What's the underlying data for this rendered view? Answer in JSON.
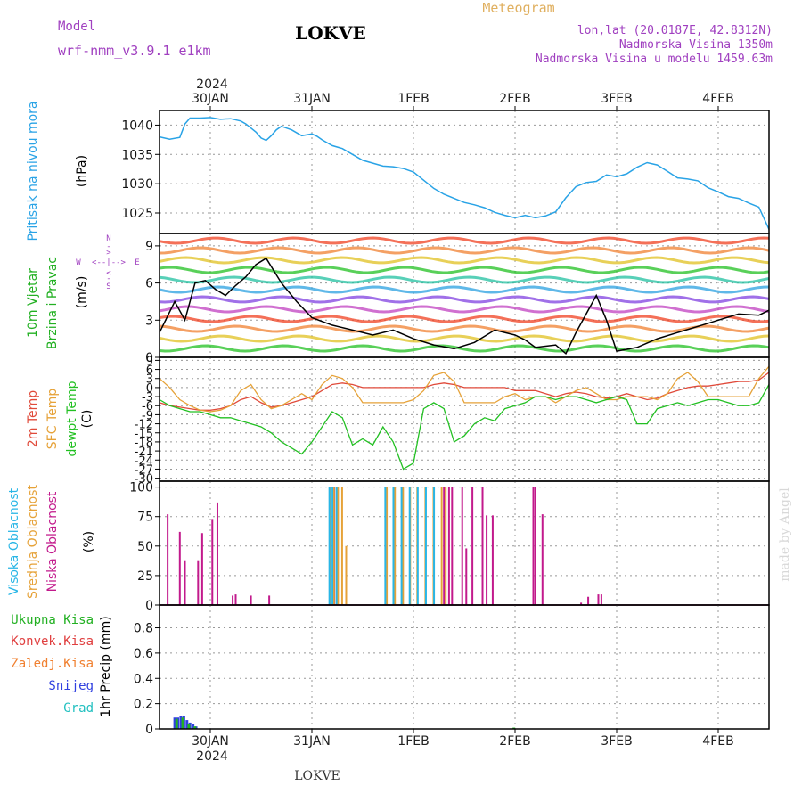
{
  "header": {
    "model_label": "Model",
    "model_name": "wrf-nmm_v3.9.1 e1km",
    "station": "LOKVE",
    "meteogram": "Meteogram",
    "lonlat": "lon,lat (20.0187E, 42.8312N)",
    "elevation": "Nadmorska Visina 1350m",
    "model_elevation": "Nadmorska Visina u modelu 1459.63m",
    "footer_station": "LOKVE",
    "watermark": "made by Angel"
  },
  "colors": {
    "pressure": "#29a3e6",
    "temp2m": "#e04a3a",
    "sfc_temp": "#e6a238",
    "dewpt": "#22c022",
    "cloud_high": "#29b6e6",
    "cloud_mid": "#e6a238",
    "cloud_low": "#c21a8c",
    "precip_total": "#22b022",
    "precip_conv": "#e04040",
    "precip_frozen": "#f08030",
    "precip_snow": "#3040e0",
    "precip_graupel": "#22c0c0",
    "title_purple": "#a040c0",
    "meteogram_orange": "#e0b060"
  },
  "chart_data": [
    {
      "type": "line",
      "panel": "pressure",
      "ylabel": [
        "Pritisak na nivou mora",
        "(hPa)"
      ],
      "yticks": [
        1025,
        1030,
        1035,
        1040
      ],
      "ylim": [
        1021.5,
        1042.5
      ],
      "xlim": [
        -0.5,
        5.5
      ],
      "x": [
        -0.5,
        -0.4,
        -0.3,
        -0.25,
        -0.2,
        -0.1,
        0.0,
        0.1,
        0.2,
        0.3,
        0.35,
        0.45,
        0.5,
        0.55,
        0.6,
        0.65,
        0.7,
        0.8,
        0.9,
        1.0,
        1.05,
        1.1,
        1.2,
        1.3,
        1.4,
        1.5,
        1.6,
        1.7,
        1.8,
        1.9,
        2.0,
        2.1,
        2.2,
        2.3,
        2.4,
        2.5,
        2.6,
        2.7,
        2.8,
        2.9,
        3.0,
        3.1,
        3.2,
        3.3,
        3.4,
        3.5,
        3.6,
        3.7,
        3.8,
        3.9,
        4.0,
        4.1,
        4.2,
        4.3,
        4.4,
        4.5,
        4.6,
        4.7,
        4.8,
        4.9,
        5.0,
        5.1,
        5.2,
        5.3,
        5.4,
        5.5
      ],
      "y": [
        1038,
        1037.6,
        1037.9,
        1040.2,
        1041.2,
        1041.2,
        1041.3,
        1041,
        1041.1,
        1040.7,
        1040.2,
        1038.8,
        1037.8,
        1037.4,
        1038.2,
        1039.2,
        1039.8,
        1039.2,
        1038.2,
        1038.5,
        1038.1,
        1037.5,
        1036.5,
        1036,
        1035,
        1034,
        1033.5,
        1033,
        1032.9,
        1032.6,
        1032,
        1030.6,
        1029.2,
        1028.2,
        1027.5,
        1026.8,
        1026.4,
        1025.9,
        1025.1,
        1024.6,
        1024.2,
        1024.6,
        1024.2,
        1024.5,
        1025.2,
        1027.6,
        1029.5,
        1030.2,
        1030.4,
        1031.5,
        1031.2,
        1031.7,
        1032.8,
        1033.6,
        1033.2,
        1032.1,
        1031,
        1030.8,
        1030.5,
        1029.3,
        1028.6,
        1027.8,
        1027.5,
        1026.7,
        1026,
        1022.2
      ]
    },
    {
      "type": "line",
      "panel": "wind",
      "ylabel": [
        "10m Vjetar",
        "Brzina i Pravac",
        "(m/s)"
      ],
      "compass": {
        "n": "N",
        "w": "W",
        "e": "E",
        "s": "S"
      },
      "yticks": [
        0,
        3,
        6,
        9
      ],
      "ylim": [
        0,
        10
      ],
      "xlim": [
        -0.5,
        5.5
      ],
      "x": [
        -0.5,
        -0.35,
        -0.25,
        -0.15,
        -0.05,
        0.05,
        0.15,
        0.25,
        0.35,
        0.45,
        0.55,
        0.7,
        0.85,
        1.0,
        1.2,
        1.4,
        1.6,
        1.8,
        2.0,
        2.2,
        2.4,
        2.6,
        2.8,
        3.0,
        3.1,
        3.2,
        3.3,
        3.4,
        3.5,
        3.6,
        3.7,
        3.8,
        3.9,
        4.0,
        4.2,
        4.4,
        4.6,
        4.8,
        5.0,
        5.2,
        5.4,
        5.5
      ],
      "y": [
        2,
        4.5,
        3,
        6,
        6.2,
        5.5,
        5,
        5.8,
        6.5,
        7.5,
        8,
        6,
        4.5,
        3.2,
        2.6,
        2.2,
        1.8,
        2.2,
        1.5,
        1,
        0.7,
        1.2,
        2.2,
        1.8,
        1.4,
        0.8,
        0.9,
        1,
        0.3,
        2,
        3.5,
        5,
        3,
        0.5,
        0.8,
        1.5,
        2,
        2.5,
        3,
        3.5,
        3.4,
        3.8
      ]
    },
    {
      "type": "line",
      "panel": "temperature",
      "ylabel": [
        "2m Temp",
        "SFC Temp",
        "dewpt Temp",
        "(C)"
      ],
      "yticks": [
        9,
        6,
        3,
        0,
        -3,
        -6,
        -9,
        -12,
        -15,
        -18,
        -21,
        -24,
        -27,
        -30
      ],
      "ylim": [
        -31,
        10
      ],
      "xlim": [
        -0.5,
        5.5
      ],
      "x": [
        -0.5,
        -0.4,
        -0.3,
        -0.2,
        -0.1,
        0.0,
        0.1,
        0.2,
        0.3,
        0.4,
        0.5,
        0.6,
        0.7,
        0.8,
        0.9,
        1.0,
        1.1,
        1.2,
        1.3,
        1.4,
        1.5,
        1.6,
        1.7,
        1.8,
        1.9,
        2.0,
        2.1,
        2.2,
        2.3,
        2.4,
        2.5,
        2.6,
        2.7,
        2.8,
        2.9,
        3.0,
        3.1,
        3.2,
        3.3,
        3.4,
        3.5,
        3.6,
        3.7,
        3.8,
        3.9,
        4.0,
        4.1,
        4.2,
        4.3,
        4.4,
        4.5,
        4.6,
        4.7,
        4.8,
        4.9,
        5.0,
        5.1,
        5.2,
        5.3,
        5.4,
        5.5
      ],
      "series": [
        {
          "name": "2m Temp",
          "color_key": "temp2m",
          "values": [
            -5,
            -6,
            -6.5,
            -7,
            -7.5,
            -7.5,
            -7,
            -6,
            -4,
            -3,
            -5,
            -6.5,
            -6,
            -5,
            -4,
            -3,
            -1,
            1,
            1.5,
            1,
            0,
            0,
            0,
            0,
            0,
            0,
            0,
            1,
            1.5,
            1,
            0,
            0,
            0,
            0,
            0,
            -1,
            -1,
            -1,
            -2,
            -3,
            -2,
            -1.5,
            -2,
            -3,
            -3.5,
            -3,
            -2,
            -3,
            -4,
            -3.5,
            -2,
            -1,
            0,
            0.5,
            0.5,
            1,
            1.5,
            2,
            2,
            2.5,
            5
          ]
        },
        {
          "name": "SFC Temp",
          "color_key": "sfc_temp",
          "values": [
            3,
            0,
            -4,
            -6,
            -7.5,
            -8,
            -7.5,
            -6,
            -1,
            1,
            -4,
            -7,
            -6,
            -4,
            -2,
            -4,
            1,
            4,
            3,
            0,
            -5,
            -5,
            -5,
            -5,
            -5,
            -4,
            -1,
            4,
            5,
            2,
            -5,
            -5,
            -5,
            -5,
            -3,
            -2,
            -4,
            -3,
            -3,
            -5,
            -3,
            -1,
            0,
            -2,
            -4,
            -4,
            -3,
            -3,
            -3,
            -4,
            -2,
            3,
            5,
            2,
            -3,
            -3,
            -3,
            -3,
            -3,
            3,
            7
          ]
        },
        {
          "name": "dewpt Temp",
          "color_key": "dewpt",
          "values": [
            -4,
            -6,
            -7,
            -8,
            -8,
            -9,
            -10,
            -10,
            -11,
            -12,
            -13,
            -15,
            -18,
            -20,
            -22,
            -18,
            -13,
            -8,
            -10,
            -19,
            -17,
            -19,
            -13,
            -18,
            -27,
            -25,
            -7,
            -5,
            -7,
            -18,
            -16,
            -12,
            -10,
            -11,
            -7,
            -6,
            -5,
            -3,
            -3,
            -4,
            -3,
            -3,
            -4,
            -5,
            -4,
            -3,
            -4,
            -12,
            -12,
            -7,
            -6,
            -5,
            -6,
            -5,
            -4,
            -4,
            -5,
            -6,
            -6,
            -5,
            1
          ]
        }
      ]
    },
    {
      "type": "bar",
      "panel": "clouds",
      "ylabel": [
        "Visoka Oblacnost",
        "Srednja Oblacnost",
        "Niska Oblacnost",
        "(%)"
      ],
      "yticks": [
        0,
        25,
        50,
        75,
        100
      ],
      "ylim": [
        0,
        105
      ],
      "xlim": [
        -0.5,
        5.5
      ],
      "low": {
        "x": [
          -0.42,
          -0.3,
          -0.25,
          -0.12,
          -0.08,
          0.02,
          0.07,
          0.22,
          0.25,
          0.4,
          0.58,
          1.18,
          1.22,
          2.3,
          2.35,
          2.38,
          2.48,
          2.52,
          2.58,
          2.68,
          2.72,
          2.78,
          3.18,
          3.2,
          3.27,
          3.65,
          3.72,
          3.82,
          3.85
        ],
        "y": [
          77,
          62,
          38,
          38,
          61,
          73,
          87,
          8,
          9,
          8,
          8,
          100,
          100,
          100,
          100,
          100,
          100,
          48,
          100,
          100,
          76,
          76,
          100,
          100,
          77,
          2,
          7,
          9,
          9
        ]
      },
      "mid": {
        "x": [
          1.16,
          1.2,
          1.24,
          1.28,
          1.32,
          1.72,
          1.8,
          1.88,
          1.95,
          2.02,
          2.1,
          2.18,
          2.26,
          2.3
        ],
        "y": [
          100,
          100,
          100,
          100,
          50,
          100,
          100,
          100,
          100,
          100,
          100,
          100,
          100,
          100
        ]
      },
      "high": {
        "x": [
          1.19,
          1.22,
          1.26,
          1.74,
          1.82,
          1.9,
          1.98,
          2.06,
          2.14,
          2.22
        ],
        "y": [
          100,
          100,
          100,
          100,
          100,
          100,
          100,
          100,
          100,
          100
        ]
      }
    },
    {
      "type": "bar",
      "panel": "precip",
      "ylabel": [
        "1hr Precip (mm)"
      ],
      "legend": [
        "Ukupna Kisa",
        "Konvek.Kisa",
        "Zaledj.Kisa",
        "Snijeg",
        "Grad"
      ],
      "yticks": [
        0,
        0.2,
        0.4,
        0.6,
        0.8
      ],
      "ylim": [
        0,
        0.98
      ],
      "xlim": [
        -0.5,
        5.5
      ],
      "snow": {
        "x": [
          -0.35,
          -0.32,
          -0.29,
          -0.26,
          -0.23,
          -0.2,
          -0.17,
          -0.14
        ],
        "y": [
          0.09,
          0.09,
          0.1,
          0.1,
          0.07,
          0.05,
          0.04,
          0.02
        ]
      },
      "total": {
        "x": [
          -0.34,
          -0.28,
          -0.22,
          -0.16,
          2.98
        ],
        "y": [
          0.08,
          0.09,
          0.04,
          0.02,
          0.01
        ]
      }
    }
  ],
  "x_axis": {
    "ticks": [
      0,
      1,
      2,
      3,
      4,
      5
    ],
    "labels": [
      "30JAN",
      "31JAN",
      "1FEB",
      "2FEB",
      "3FEB",
      "4FEB"
    ],
    "year": "2024"
  }
}
